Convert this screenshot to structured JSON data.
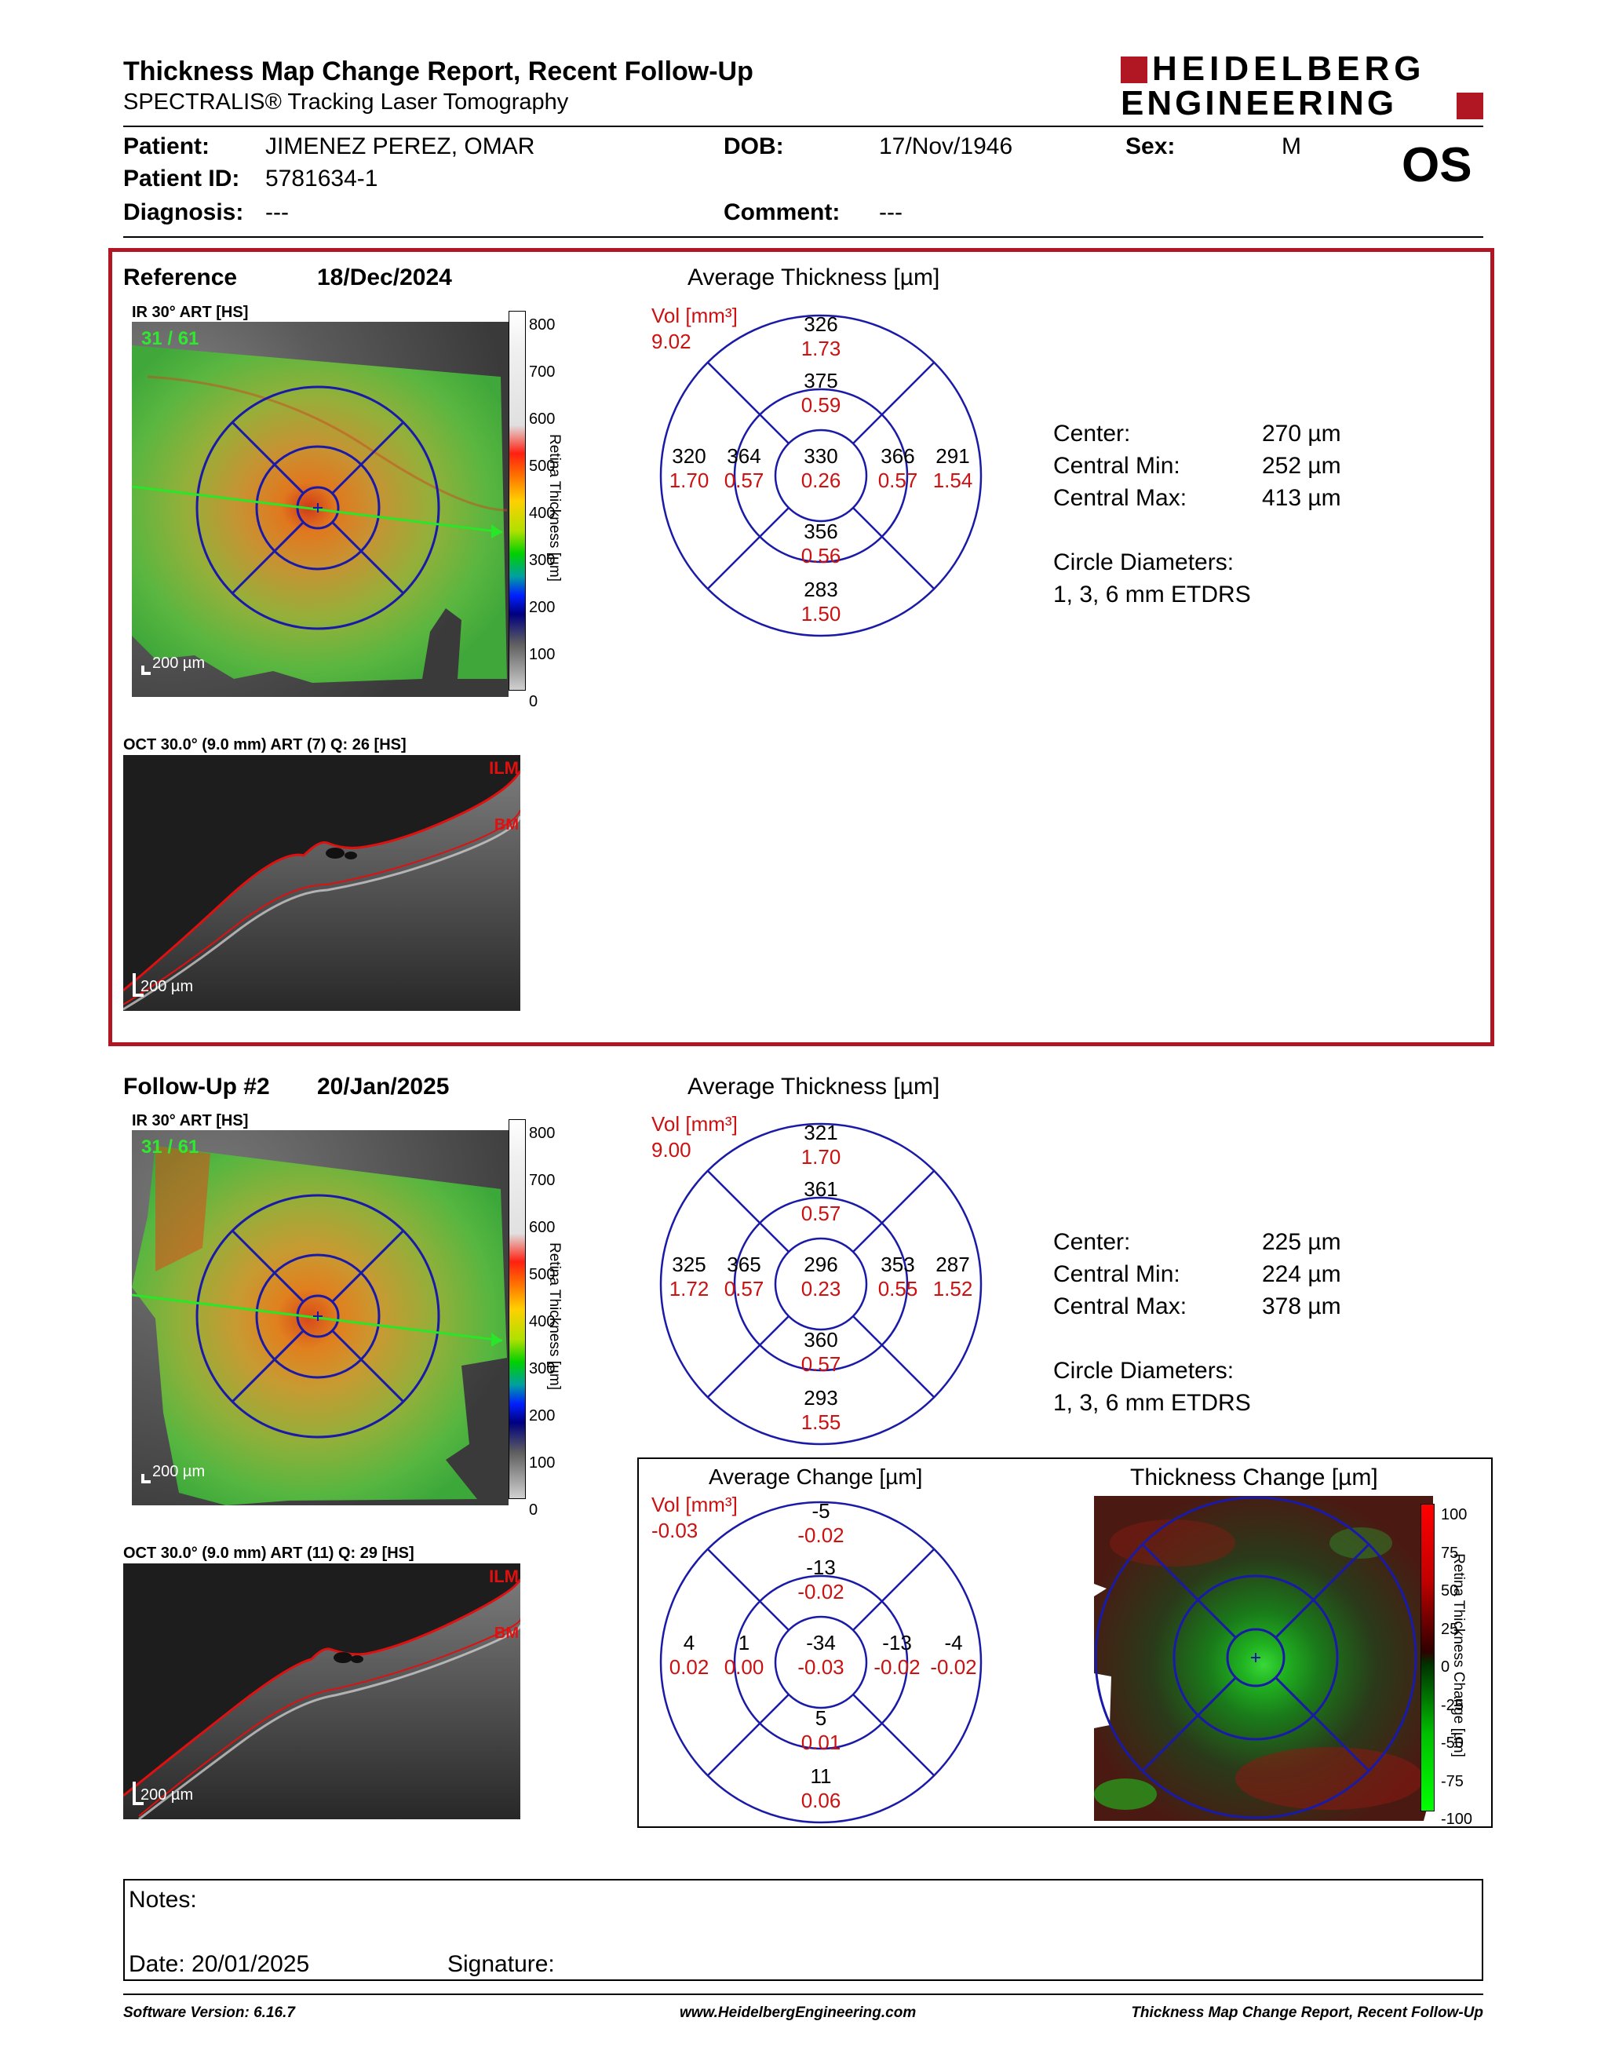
{
  "header": {
    "title": "Thickness Map Change Report, Recent Follow-Up",
    "subtitle": "SPECTRALIS® Tracking Laser Tomography",
    "logo_line1": "HEIDELBERG",
    "logo_line2": "ENGINEERING",
    "eye": "OS"
  },
  "patient": {
    "patient_label": "Patient:",
    "patient_value": "JIMENEZ PEREZ, OMAR",
    "dob_label": "DOB:",
    "dob_value": "17/Nov/1946",
    "sex_label": "Sex:",
    "sex_value": "M",
    "id_label": "Patient ID:",
    "id_value": "5781634-1",
    "diagnosis_label": "Diagnosis:",
    "diagnosis_value": "---",
    "comment_label": "Comment:",
    "comment_value": "---"
  },
  "reference": {
    "label": "Reference",
    "date": "18/Dec/2024",
    "ir_label": "IR 30° ART [HS]",
    "frame": "31 / 61",
    "scalebar": "200 µm",
    "oct_label": "OCT 30.0° (9.0 mm) ART (7) Q: 26 [HS]",
    "oct_scalebar": "200 µm",
    "ilm": "ILM",
    "bm": "BM",
    "avg_title": "Average Thickness [µm]",
    "vol_label": "Vol [mm³]",
    "vol_total": "9.02",
    "grid": {
      "outer_sup": [
        "326",
        "1.73"
      ],
      "inner_sup": [
        "375",
        "0.59"
      ],
      "outer_temp": [
        "320",
        "1.70"
      ],
      "inner_temp": [
        "364",
        "0.57"
      ],
      "center": [
        "330",
        "0.26"
      ],
      "inner_nas": [
        "366",
        "0.57"
      ],
      "outer_nas": [
        "291",
        "1.54"
      ],
      "inner_inf": [
        "356",
        "0.56"
      ],
      "outer_inf": [
        "283",
        "1.50"
      ]
    },
    "stats": {
      "center_label": "Center:",
      "center_value": "270 µm",
      "min_label": "Central Min:",
      "min_value": "252 µm",
      "max_label": "Central Max:",
      "max_value": "413 µm",
      "circle_label": "Circle Diameters:",
      "circle_value": "1, 3, 6 mm ETDRS"
    }
  },
  "followup": {
    "label": "Follow-Up #2",
    "date": "20/Jan/2025",
    "ir_label": "IR 30° ART [HS]",
    "frame": "31 / 61",
    "scalebar": "200 µm",
    "oct_label": "OCT 30.0° (9.0 mm) ART (11) Q: 29 [HS]",
    "oct_scalebar": "200 µm",
    "ilm": "ILM",
    "bm": "BM",
    "avg_title": "Average Thickness [µm]",
    "vol_label": "Vol [mm³]",
    "vol_total": "9.00",
    "grid": {
      "outer_sup": [
        "321",
        "1.70"
      ],
      "inner_sup": [
        "361",
        "0.57"
      ],
      "outer_temp": [
        "325",
        "1.72"
      ],
      "inner_temp": [
        "365",
        "0.57"
      ],
      "center": [
        "296",
        "0.23"
      ],
      "inner_nas": [
        "353",
        "0.55"
      ],
      "outer_nas": [
        "287",
        "1.52"
      ],
      "inner_inf": [
        "360",
        "0.57"
      ],
      "outer_inf": [
        "293",
        "1.55"
      ]
    },
    "stats": {
      "center_label": "Center:",
      "center_value": "225 µm",
      "min_label": "Central Min:",
      "min_value": "224 µm",
      "max_label": "Central Max:",
      "max_value": "378 µm",
      "circle_label": "Circle Diameters:",
      "circle_value": "1, 3, 6 mm ETDRS"
    }
  },
  "change": {
    "avg_title": "Average Change [µm]",
    "vol_label": "Vol [mm³]",
    "vol_total": "-0.03",
    "grid": {
      "outer_sup": [
        "-5",
        "-0.02"
      ],
      "inner_sup": [
        "-13",
        "-0.02"
      ],
      "outer_temp": [
        "4",
        "0.02"
      ],
      "inner_temp": [
        "1",
        "0.00"
      ],
      "center": [
        "-34",
        "-0.03"
      ],
      "inner_nas": [
        "-13",
        "-0.02"
      ],
      "outer_nas": [
        "-4",
        "-0.02"
      ],
      "inner_inf": [
        "5",
        "0.01"
      ],
      "outer_inf": [
        "11",
        "0.06"
      ]
    },
    "map_title": "Thickness Change [µm]",
    "colorbar_label": "Retina Thickness Change [µm]",
    "colorbar_ticks": [
      "100",
      "75",
      "50",
      "25",
      "0",
      "-25",
      "-50",
      "-75",
      "-100"
    ]
  },
  "colorbar": {
    "label": "Retina Thickness [µm]",
    "ticks": [
      "800",
      "700",
      "600",
      "500",
      "400",
      "300",
      "200",
      "100",
      "0"
    ]
  },
  "notes": {
    "notes_label": "Notes:",
    "date_label": "Date: 20/01/2025",
    "signature_label": "Signature:"
  },
  "footer": {
    "software": "Software Version: 6.16.7",
    "website": "www.HeidelbergEngineering.com",
    "report": "Thickness Map Change Report, Recent Follow-Up"
  },
  "colors": {
    "accent_red": "#b01722",
    "grid_blue": "#1a1aa8",
    "value_red": "#cc1111"
  }
}
